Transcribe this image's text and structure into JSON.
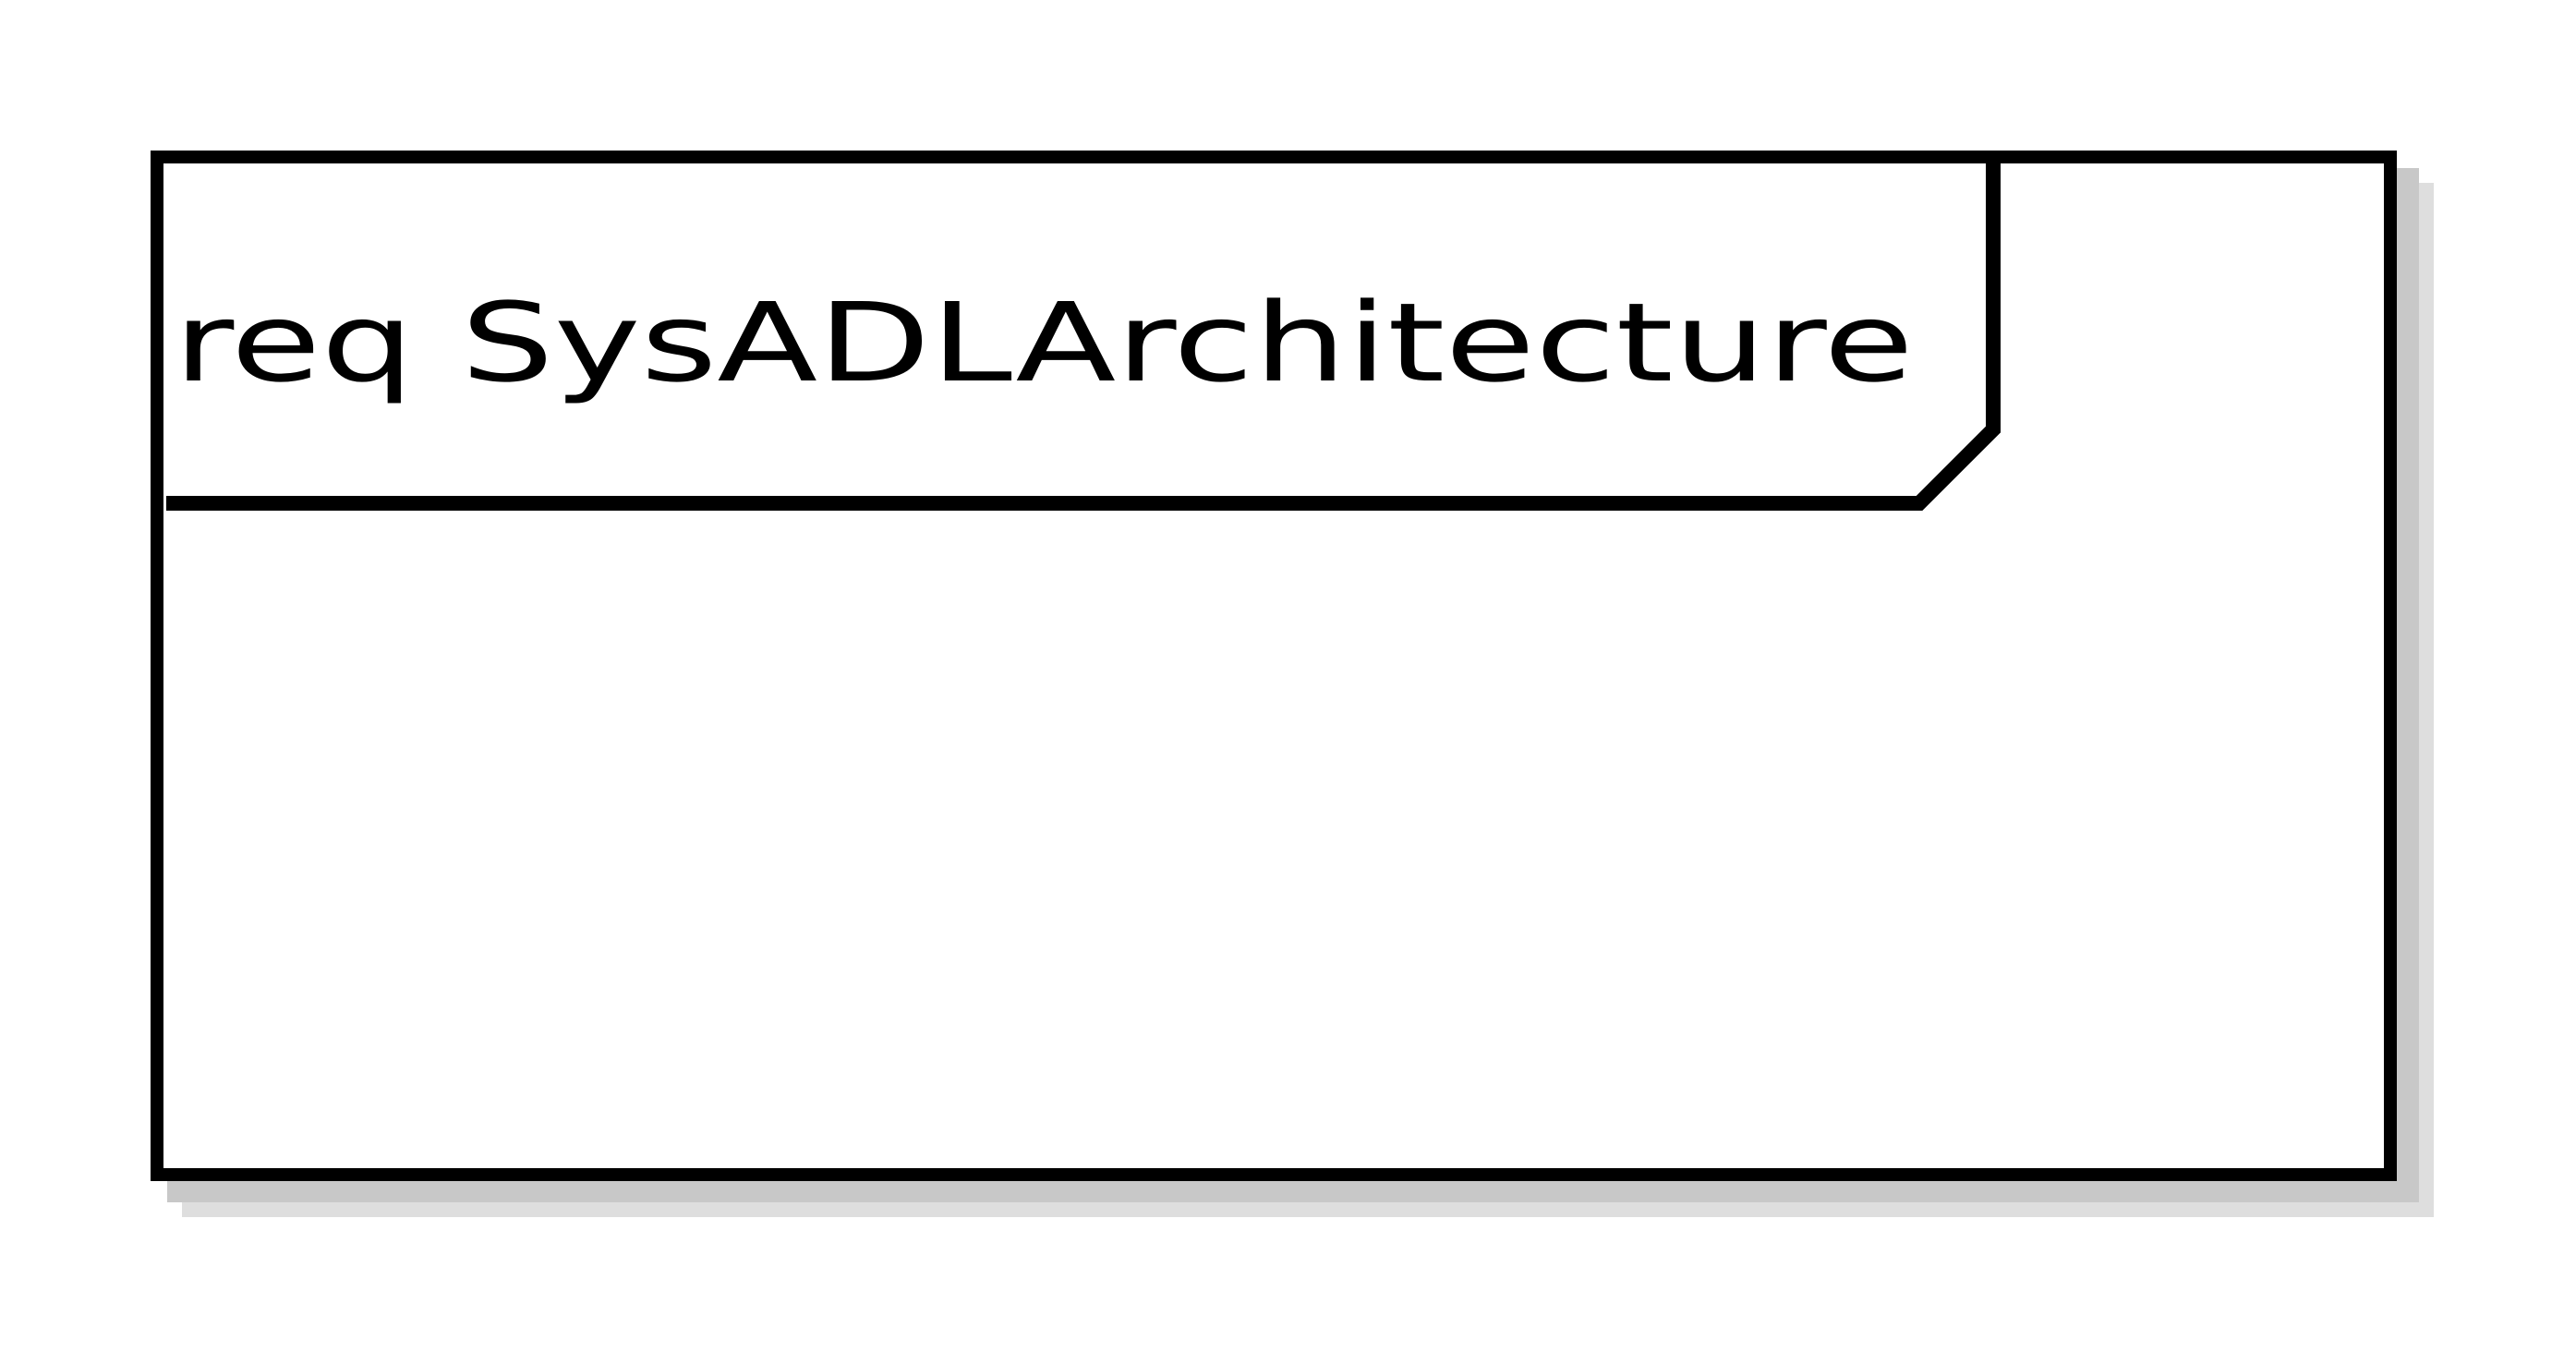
{
  "diagram": {
    "frame": {
      "kind": "req",
      "name": "SysADLArchitecture",
      "label": "req SysADLArchitecture"
    },
    "colors": {
      "stroke": "#000000",
      "fill": "#ffffff",
      "shadow_dark": "#c8c8c8",
      "shadow_light": "#dedede"
    }
  }
}
